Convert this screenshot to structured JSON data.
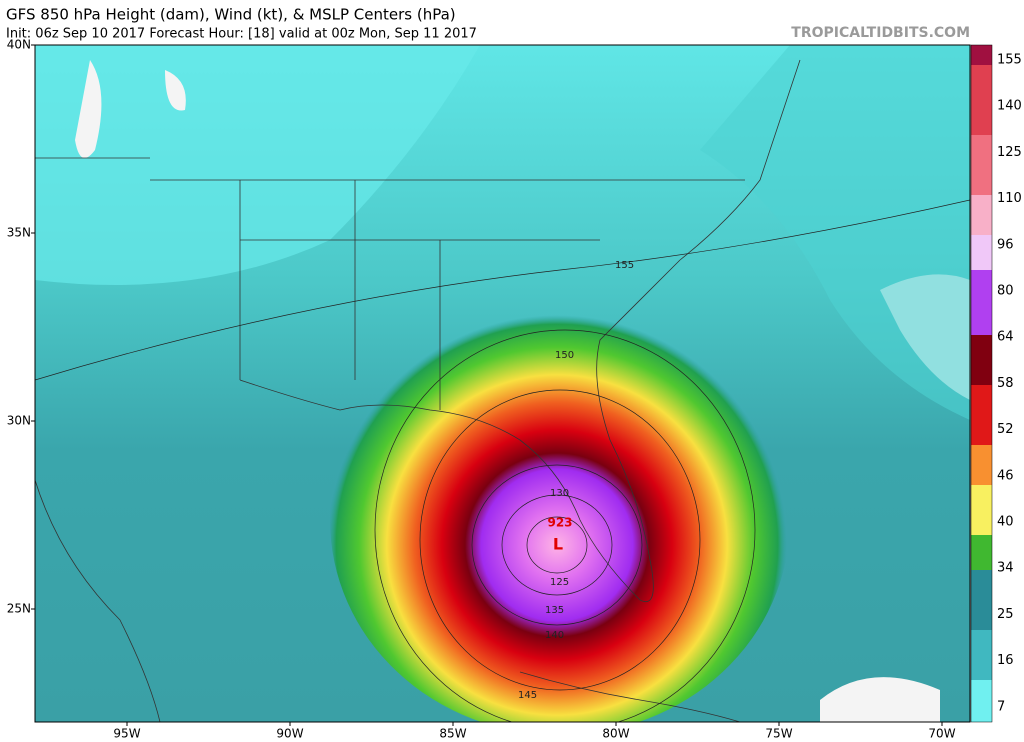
{
  "header": {
    "title": "GFS 850 hPa Height (dam), Wind (kt), & MSLP Centers (hPa)",
    "subtitle": "Init: 06z Sep 10 2017   Forecast Hour: [18]   valid at 00z Mon, Sep 11 2017",
    "watermark": "TROPICALTIDBITS.COM"
  },
  "map": {
    "lat_labels": [
      "40N",
      "35N",
      "30N",
      "25N"
    ],
    "lon_labels": [
      "95W",
      "90W",
      "85W",
      "80W",
      "75W",
      "70W"
    ],
    "colorbar_labels": [
      "155",
      "140",
      "125",
      "110",
      "96",
      "80",
      "64",
      "58",
      "52",
      "46",
      "40",
      "34",
      "25",
      "16",
      "7"
    ],
    "contour_labels": [
      "155",
      "150",
      "145",
      "140",
      "135",
      "130",
      "125"
    ],
    "center_pressure": "923",
    "center_symbol": "L"
  }
}
